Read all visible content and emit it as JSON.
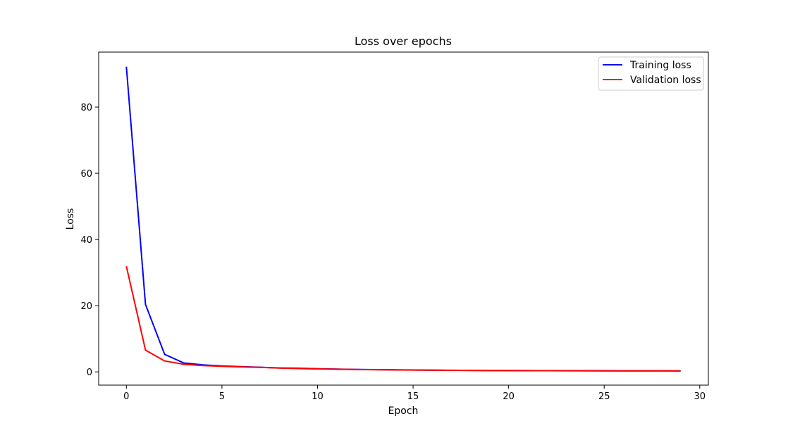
{
  "chart_data": {
    "type": "line",
    "title": "Loss over epochs",
    "xlabel": "Epoch",
    "ylabel": "Loss",
    "xlim": [
      -1.45,
      30.45
    ],
    "ylim": [
      -4.0,
      96.6
    ],
    "xticks": [
      0,
      5,
      10,
      15,
      20,
      25,
      30
    ],
    "yticks": [
      0,
      20,
      40,
      60,
      80
    ],
    "grid": false,
    "legend_position": "top-right",
    "x": [
      0,
      1,
      2,
      3,
      4,
      5,
      6,
      7,
      8,
      9,
      10,
      11,
      12,
      13,
      14,
      15,
      16,
      17,
      18,
      19,
      20,
      21,
      22,
      23,
      24,
      25,
      26,
      27,
      28,
      29
    ],
    "series": [
      {
        "name": "Training loss",
        "color": "#0000ff",
        "values": [
          92.2,
          20.4,
          5.3,
          2.7,
          2.1,
          1.8,
          1.6,
          1.4,
          1.2,
          1.1,
          0.95,
          0.85,
          0.75,
          0.68,
          0.62,
          0.57,
          0.52,
          0.48,
          0.45,
          0.42,
          0.4,
          0.38,
          0.36,
          0.35,
          0.34,
          0.33,
          0.32,
          0.31,
          0.3,
          0.29
        ]
      },
      {
        "name": "Validation loss",
        "color": "#ff0000",
        "values": [
          31.9,
          6.6,
          3.3,
          2.3,
          1.9,
          1.7,
          1.5,
          1.35,
          1.15,
          1.0,
          0.9,
          0.8,
          0.72,
          0.65,
          0.6,
          0.55,
          0.5,
          0.47,
          0.44,
          0.41,
          0.39,
          0.37,
          0.35,
          0.34,
          0.33,
          0.32,
          0.31,
          0.3,
          0.29,
          0.28
        ]
      }
    ]
  }
}
